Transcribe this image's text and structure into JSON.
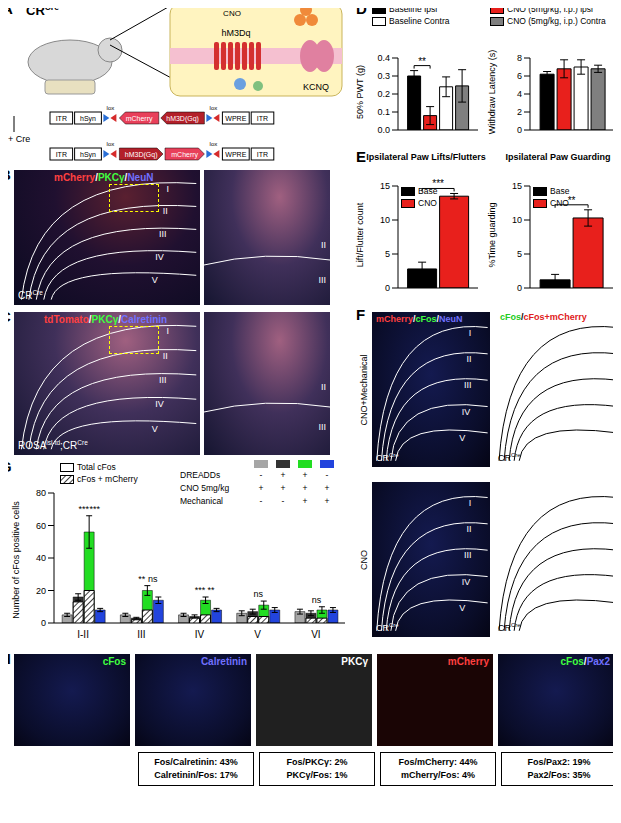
{
  "panels": {
    "A": {
      "label": "A",
      "mouse": [
        {
          "text": "CR"
        },
        {
          "text": "Cre",
          "sup": true
        }
      ],
      "drug": "CNO",
      "receptor": "hM3Dq",
      "channel": "KCNQ",
      "construct": [
        "ITR",
        "hSyn",
        "lox",
        "mCherry",
        "hM3D(Gq)",
        "lox",
        "WPRE",
        "ITR"
      ],
      "recombination": "+ Cre",
      "recombined": [
        "ITR",
        "hSyn",
        "lox",
        "hM3D(Gq)",
        "mCherry",
        "lox",
        "WPRE",
        "ITR"
      ]
    },
    "B": {
      "label": "B",
      "stains": [
        {
          "text": "mCherry",
          "color": "#ff4040"
        },
        {
          "text": "PKCγ",
          "color": "#40ff40"
        },
        {
          "text": "NeuN",
          "color": "#7070ff"
        }
      ],
      "separator": "/",
      "laminae": [
        "I",
        "II",
        "III",
        "IV",
        "V"
      ],
      "inset_laminae": [
        "II",
        "III"
      ],
      "mouse": [
        {
          "text": "CR"
        },
        {
          "text": "Cre",
          "sup": true
        }
      ]
    },
    "C": {
      "label": "C",
      "stains": [
        {
          "text": "tdTomato",
          "color": "#ff4040"
        },
        {
          "text": "PKCγ",
          "color": "#40ff40"
        },
        {
          "text": "Calretinin",
          "color": "#7070ff"
        }
      ],
      "separator": "/",
      "laminae": [
        "I",
        "II",
        "III",
        "IV",
        "V"
      ],
      "inset_laminae": [
        "II",
        "III"
      ],
      "mouse": [
        {
          "text": "ROSA"
        },
        {
          "text": "lsl-td",
          "sup": true
        },
        {
          "text": ";CR"
        },
        {
          "text": "Cre",
          "sup": true
        }
      ]
    },
    "D": {
      "label": "D"
    },
    "E": {
      "label": "E"
    },
    "F": {
      "label": "F",
      "stains": [
        {
          "text": "mCherry",
          "color": "#ff4040"
        },
        {
          "text": "cFos",
          "color": "#40ff40"
        },
        {
          "text": "NeuN",
          "color": "#7070ff"
        }
      ],
      "map_key": [
        {
          "text": "cFos",
          "color": "#22cc22"
        },
        {
          "text": "cFos+mCherry",
          "color": "#e02020"
        }
      ],
      "separator": "/",
      "conditions": [
        "CNO+Mechanical",
        "CNO"
      ],
      "laminae": [
        "I",
        "II",
        "III",
        "IV",
        "V"
      ],
      "mouse": [
        {
          "text": "CR"
        },
        {
          "text": "Cre",
          "sup": true
        }
      ]
    },
    "G": {
      "label": "G"
    },
    "H": {
      "label": "H",
      "channels": [
        [
          {
            "text": "cFos",
            "color": "#40ff40"
          }
        ],
        [
          {
            "text": "Calretinin",
            "color": "#7070ff"
          }
        ],
        [
          {
            "text": "PKCγ",
            "color": "#ffffff"
          }
        ],
        [
          {
            "text": "mCherry",
            "color": "#ff4040"
          }
        ],
        [
          {
            "text": "cFos",
            "color": "#40ff40"
          },
          {
            "text": "/",
            "color": "#ffffff"
          },
          {
            "text": "Pax2",
            "color": "#7070ff"
          }
        ]
      ],
      "boxes": [
        [
          "Fos/Calretinin: 43%",
          "Calretinin/Fos: 17%"
        ],
        [
          "Fos/PKCγ: 2%",
          "PKCγ/Fos: 1%"
        ],
        [
          "Fos/mCherry: 44%",
          "mCherry/Fos: 4%"
        ],
        [
          "Fos/Pax2: 19%",
          "Pax2/Fos: 35%"
        ]
      ]
    }
  },
  "chart_data": [
    {
      "type": "bar",
      "y_label": "50% PWT (g)",
      "categories": [
        null
      ],
      "series": [
        {
          "name": "Baseline Ipsi",
          "color": "#000000",
          "values": [
            0.3
          ],
          "errors": [
            0.03
          ]
        },
        {
          "name": "CNO (5mg/kg, i.p.) ipsi",
          "color": "#e8201c",
          "values": [
            0.08
          ],
          "errors": [
            0.05
          ]
        },
        {
          "name": "Baseline Contra",
          "color": "#ffffff",
          "values": [
            0.24
          ],
          "errors": [
            0.055
          ]
        },
        {
          "name": "CNO (5mg/kg, i.p.) Contra",
          "color": "#7f7f7f",
          "values": [
            0.245
          ],
          "errors": [
            0.09
          ]
        }
      ],
      "ylim": [
        0,
        0.4
      ],
      "yticks": [
        {
          "value": 0,
          "label": "0.0"
        },
        0.1,
        0.2,
        0.3,
        0.4
      ],
      "annotations": [
        {
          "text": "**",
          "between": [
            0,
            1
          ]
        }
      ]
    },
    {
      "type": "bar",
      "y_label": "Withdraw Latency (s)",
      "categories": [
        null
      ],
      "series": [
        {
          "color": "#000000",
          "values": [
            6.2
          ],
          "errors": [
            0.3
          ]
        },
        {
          "color": "#e8201c",
          "values": [
            6.8
          ],
          "errors": [
            1.0
          ]
        },
        {
          "color": "#ffffff",
          "values": [
            7.0
          ],
          "errors": [
            0.8
          ]
        },
        {
          "color": "#7f7f7f",
          "values": [
            6.8
          ],
          "errors": [
            0.4
          ]
        }
      ],
      "ylim": [
        0,
        8
      ],
      "yticks": [
        0,
        2,
        4,
        6,
        8
      ],
      "annotations": []
    },
    {
      "type": "bar",
      "title": "Ipsilateral Paw Lifts/Flutters",
      "y_label": "Lift/Flutter count",
      "categories": [
        null
      ],
      "series": [
        {
          "name": "Base",
          "color": "#000000",
          "values": [
            2.8
          ],
          "errors": [
            1.0
          ]
        },
        {
          "name": "CNO",
          "color": "#e8201c",
          "values": [
            13.5
          ],
          "errors": [
            0.4
          ]
        }
      ],
      "ylim": [
        0,
        15
      ],
      "yticks": [
        0,
        5,
        10,
        15
      ],
      "annotations": [
        {
          "text": "***",
          "between": [
            0,
            1
          ]
        }
      ]
    },
    {
      "type": "bar",
      "title": "Ipsilateral Paw Guarding",
      "y_label": "%Time guarding",
      "categories": [
        null
      ],
      "series": [
        {
          "name": "Base",
          "color": "#000000",
          "values": [
            1.2
          ],
          "errors": [
            0.8
          ]
        },
        {
          "name": "CNO",
          "color": "#e8201c",
          "values": [
            10.3
          ],
          "errors": [
            1.2
          ]
        }
      ],
      "ylim": [
        0,
        15
      ],
      "yticks": [
        0,
        5,
        10,
        15
      ],
      "annotations": [
        {
          "text": "**",
          "between": [
            0,
            1
          ]
        }
      ]
    },
    {
      "type": "bar",
      "y_label": "Number of cFos positive cells",
      "categories": [
        "I-II",
        "III",
        "IV",
        "V",
        "VI"
      ],
      "series": [
        {
          "color": "#a6a6a6",
          "values": [
            5,
            5,
            5,
            6,
            7
          ],
          "errors": [
            1,
            1,
            1,
            1.5,
            1.5
          ]
        },
        {
          "color": "#333333",
          "values": [
            16,
            3,
            4,
            7,
            6
          ],
          "errors": [
            2,
            0.5,
            1,
            1.5,
            1.5
          ]
        },
        {
          "color": "#22dd22",
          "values": [
            56,
            20,
            14,
            11,
            8
          ],
          "errors": [
            10,
            3,
            2,
            2.5,
            2
          ]
        },
        {
          "color": "#2244dd",
          "values": [
            8,
            14,
            8,
            8,
            8
          ],
          "errors": [
            1,
            2,
            1,
            1.5,
            1.5
          ]
        }
      ],
      "overlay": {
        "values": [
          null,
          [
            13,
            2,
            3,
            4,
            3
          ],
          [
            20,
            8,
            5,
            4,
            3
          ],
          null
        ]
      },
      "legend_entries": [
        "Total cFos",
        "cFos + mCherry"
      ],
      "ylim": [
        0,
        80
      ],
      "yticks": [
        0,
        20,
        40,
        60,
        80
      ],
      "annotations": [
        [
          "***",
          "***"
        ],
        [
          "**",
          "ns"
        ],
        [
          "***",
          "**"
        ],
        [
          "ns"
        ],
        [
          "ns"
        ]
      ],
      "table": [
        {
          "label": "DREADDs",
          "cells": [
            "-",
            "+",
            "+",
            "-"
          ]
        },
        {
          "label": "CNO 5mg/kg",
          "cells": [
            "+",
            "+",
            "+",
            "+"
          ]
        },
        {
          "label": "Mechanical",
          "cells": [
            "-",
            "-",
            "+",
            "+"
          ]
        }
      ]
    }
  ]
}
